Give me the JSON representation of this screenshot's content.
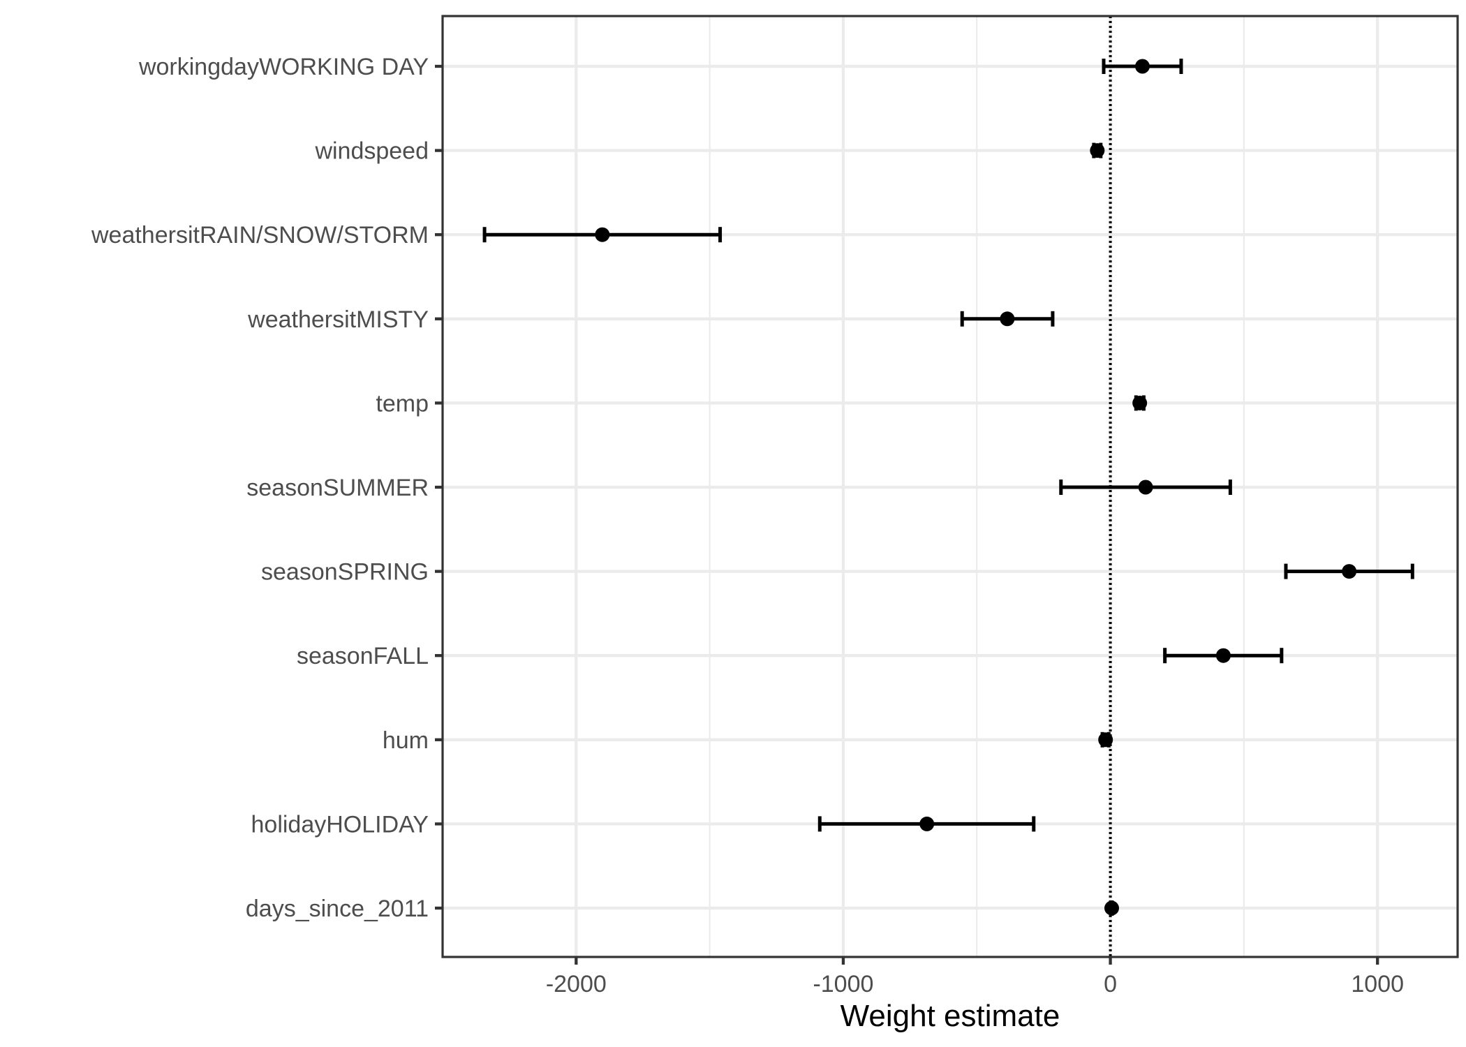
{
  "chart_data": {
    "type": "errorbar",
    "xlabel": "Weight estimate",
    "ylabel": "",
    "title": "",
    "xlim": [
      -2500,
      1300
    ],
    "xticks": [
      -2000,
      -1000,
      0,
      1000
    ],
    "xtick_labels": [
      "-2000",
      "-1000",
      "0",
      "1000"
    ],
    "reference_line": 0,
    "grid": true,
    "legend": "none",
    "features": [
      {
        "name": "workingdayWORKING DAY",
        "estimate": 120,
        "lower": -25,
        "upper": 265
      },
      {
        "name": "windspeed",
        "estimate": -49,
        "lower": -62,
        "upper": -36
      },
      {
        "name": "weathersitRAIN/SNOW/STORM",
        "estimate": -1902,
        "lower": -2343,
        "upper": -1461
      },
      {
        "name": "weathersitMISTY",
        "estimate": -386,
        "lower": -555,
        "upper": -216
      },
      {
        "name": "temp",
        "estimate": 110,
        "lower": 96,
        "upper": 125
      },
      {
        "name": "seasonSUMMER",
        "estimate": 132,
        "lower": -185,
        "upper": 449
      },
      {
        "name": "seasonSPRING",
        "estimate": 894,
        "lower": 657,
        "upper": 1131
      },
      {
        "name": "seasonFALL",
        "estimate": 423,
        "lower": 204,
        "upper": 641
      },
      {
        "name": "hum",
        "estimate": -18,
        "lower": -30,
        "upper": -6
      },
      {
        "name": "holidayHOLIDAY",
        "estimate": -687,
        "lower": -1088,
        "upper": -287
      },
      {
        "name": "days_since_2011",
        "estimate": 5,
        "lower": 4,
        "upper": 6
      }
    ]
  }
}
